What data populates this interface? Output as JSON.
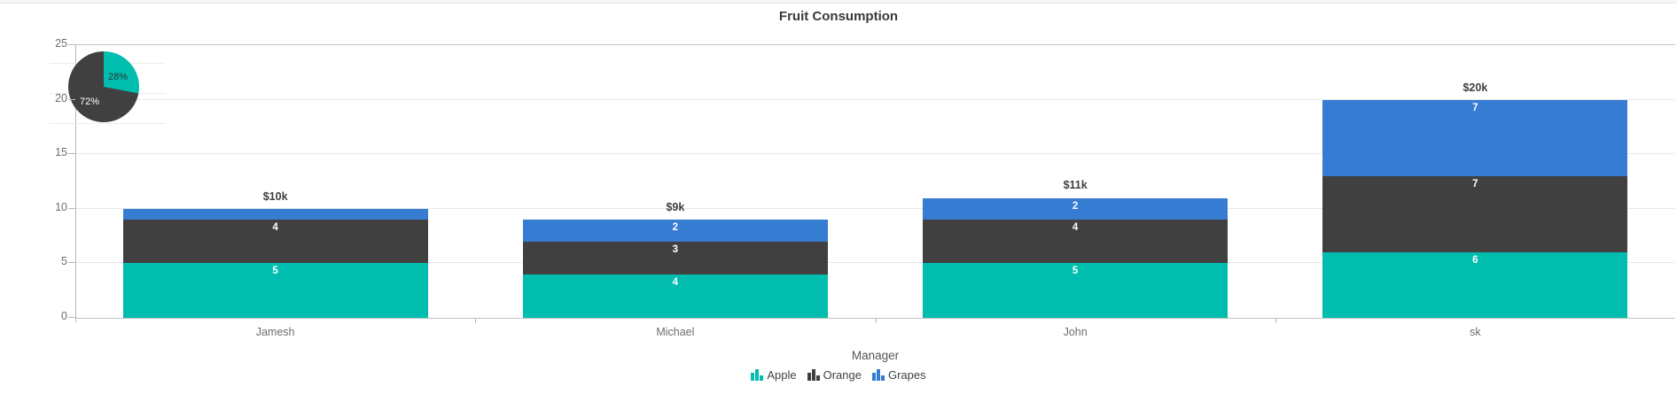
{
  "title": "Fruit Consumption",
  "chart_data": [
    {
      "type": "bar",
      "stacked": true,
      "title": "Fruit Consumption",
      "xlabel": "Manager",
      "ylabel": "",
      "ylim": [
        0,
        25
      ],
      "ytick_labels": [
        "25",
        "20",
        "15",
        "10",
        "5",
        "0"
      ],
      "grid": true,
      "legend_position": "bottom",
      "categories": [
        "Jamesh",
        "Michael",
        "John",
        "sk"
      ],
      "series": [
        {
          "name": "Apple",
          "color": "#00bdae",
          "values": [
            5,
            4,
            5,
            6
          ]
        },
        {
          "name": "Orange",
          "color": "#404041",
          "values": [
            4,
            3,
            4,
            7
          ]
        },
        {
          "name": "Grapes",
          "color": "#357cd2",
          "values": [
            1,
            2,
            2,
            7
          ]
        }
      ],
      "segment_labels": [
        [
          "5",
          "4",
          ""
        ],
        [
          "4",
          "3",
          "2"
        ],
        [
          "5",
          "4",
          "2"
        ],
        [
          "6",
          "7",
          "7"
        ]
      ],
      "totals": [
        "$10k",
        "$9k",
        "$11k",
        "$20k"
      ]
    },
    {
      "type": "pie",
      "slices": [
        {
          "label": "28%",
          "value": 28,
          "color": "#00bdae"
        },
        {
          "label": "72%",
          "value": 72,
          "color": "#404041"
        }
      ]
    }
  ],
  "legend": {
    "items": [
      {
        "label": "Apple",
        "color": "#00bdae"
      },
      {
        "label": "Orange",
        "color": "#404041"
      },
      {
        "label": "Grapes",
        "color": "#357cd2"
      }
    ]
  }
}
